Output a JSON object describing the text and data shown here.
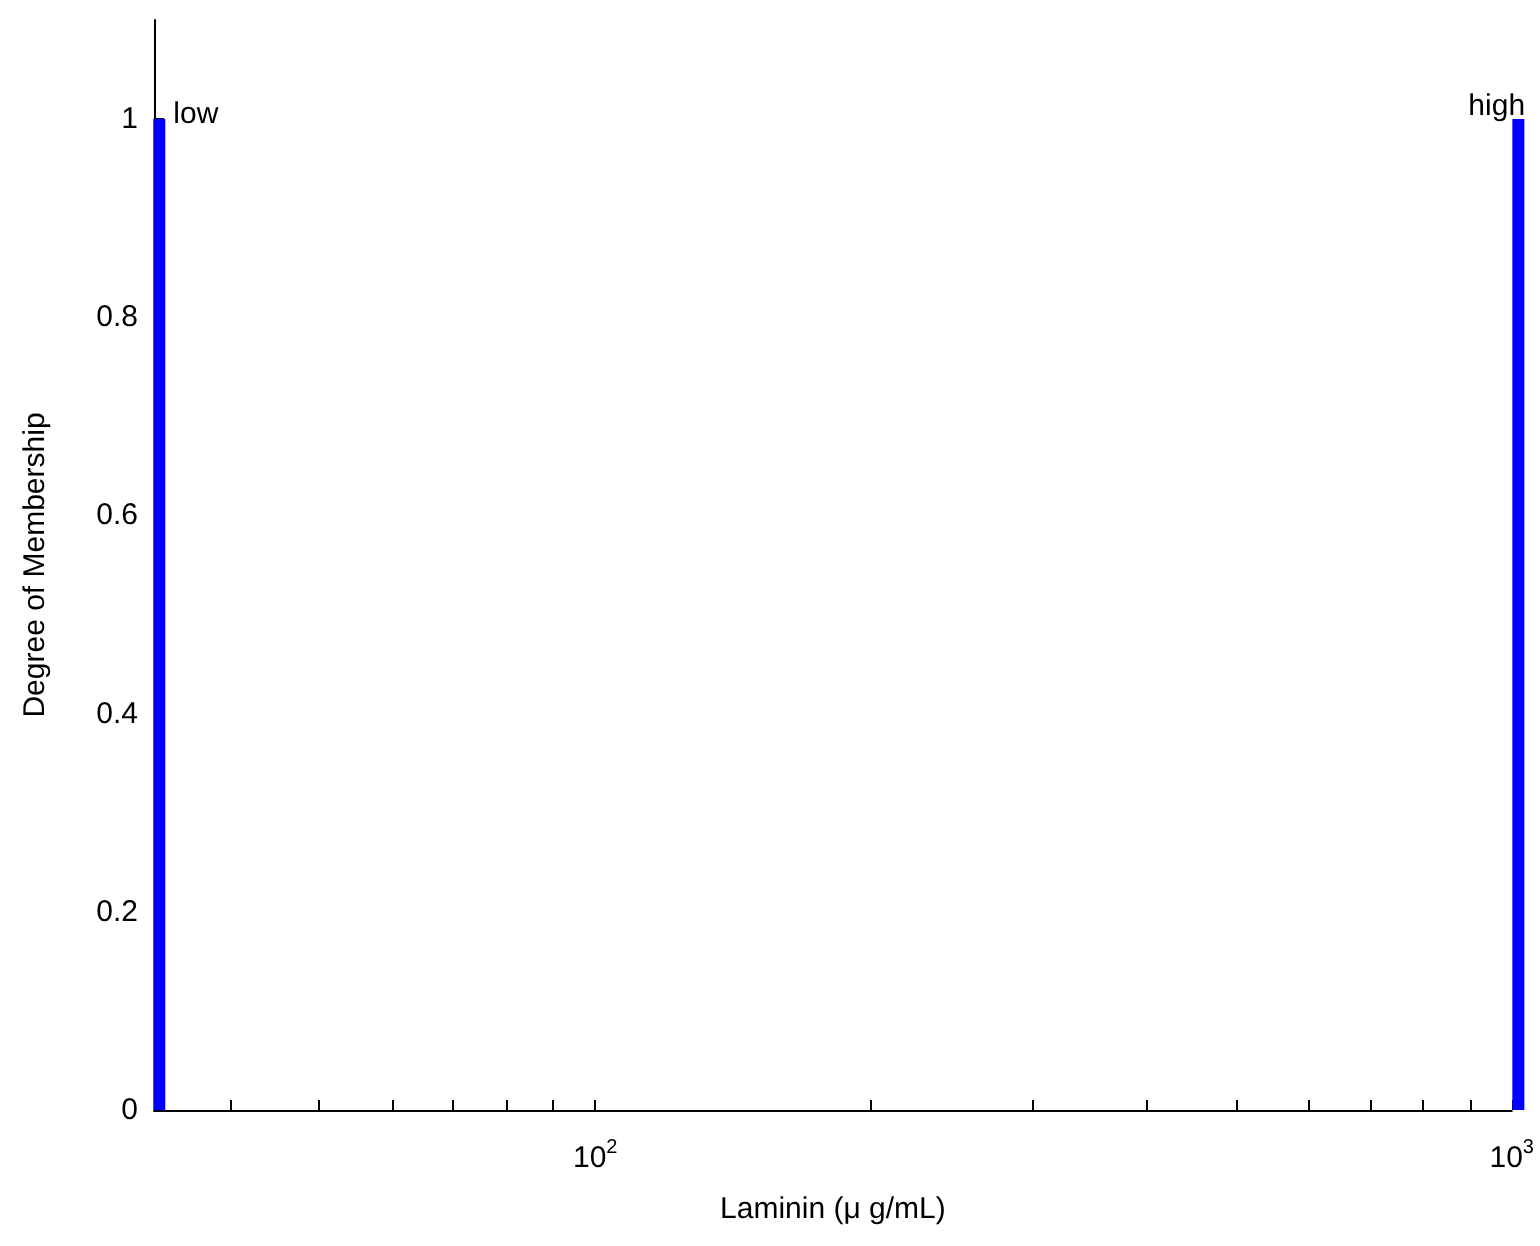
{
  "chart_data": {
    "type": "bar",
    "xlabel": "Laminin (μ g/mL)",
    "ylabel": "Degree of Membership",
    "log": "x",
    "xlim": [
      33,
      1000
    ],
    "ylim": [
      0,
      1.1
    ],
    "xticks": [
      {
        "value": 40,
        "label": null
      },
      {
        "value": 50,
        "label": null
      },
      {
        "value": 60,
        "label": null
      },
      {
        "value": 70,
        "label": null
      },
      {
        "value": 80,
        "label": null
      },
      {
        "value": 90,
        "label": null
      },
      {
        "value": 100,
        "label": "10$^{2}$"
      },
      {
        "value": 200,
        "label": null
      },
      {
        "value": 300,
        "label": null
      },
      {
        "value": 400,
        "label": null
      },
      {
        "value": 500,
        "label": null
      },
      {
        "value": 600,
        "label": null
      },
      {
        "value": 700,
        "label": null
      },
      {
        "value": 800,
        "label": null
      },
      {
        "value": 900,
        "label": null
      },
      {
        "value": 1000,
        "label": "10$^{3}$"
      }
    ],
    "yticks": [
      0,
      0.2,
      0.4,
      0.6,
      0.8,
      1
    ],
    "series": [
      {
        "name": "low",
        "color": "#0000ff",
        "x": [
          34
        ],
        "values": [
          1
        ]
      },
      {
        "name": "high",
        "color": "#0000ff",
        "x": [
          1000
        ],
        "values": [
          1
        ]
      }
    ],
    "grid": false,
    "legend": false
  }
}
